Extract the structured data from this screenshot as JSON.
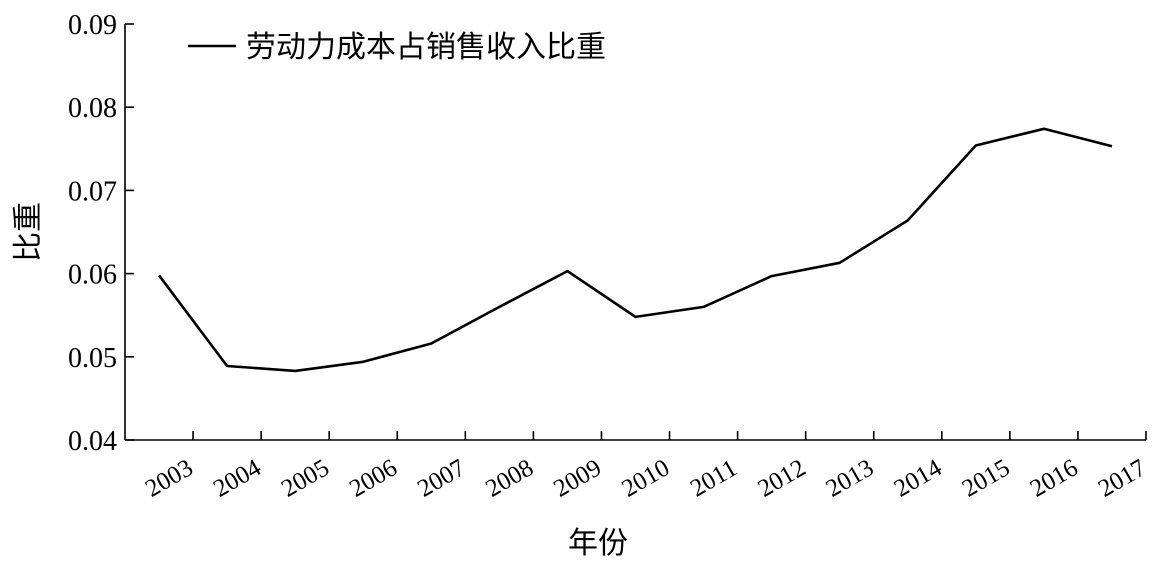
{
  "chart_data": {
    "type": "line",
    "title": "",
    "xlabel": "年份",
    "ylabel": "比重",
    "categories": [
      "2003",
      "2004",
      "2005",
      "2006",
      "2007",
      "2008",
      "2009",
      "2010",
      "2011",
      "2012",
      "2013",
      "2014",
      "2015",
      "2016",
      "2017"
    ],
    "ylim": [
      0.04,
      0.09
    ],
    "yticks": [
      "0.04",
      "0.05",
      "0.06",
      "0.07",
      "0.08",
      "0.09"
    ],
    "series": [
      {
        "name": "劳动力成本占销售收入比重",
        "color": "#000000",
        "values": [
          0.0598,
          0.0489,
          0.0483,
          0.0494,
          0.0516,
          0.056,
          0.0603,
          0.0548,
          0.056,
          0.0597,
          0.0613,
          0.0664,
          0.0754,
          0.0774,
          0.0753
        ]
      }
    ],
    "grid": false,
    "legend_position": "top-left"
  }
}
